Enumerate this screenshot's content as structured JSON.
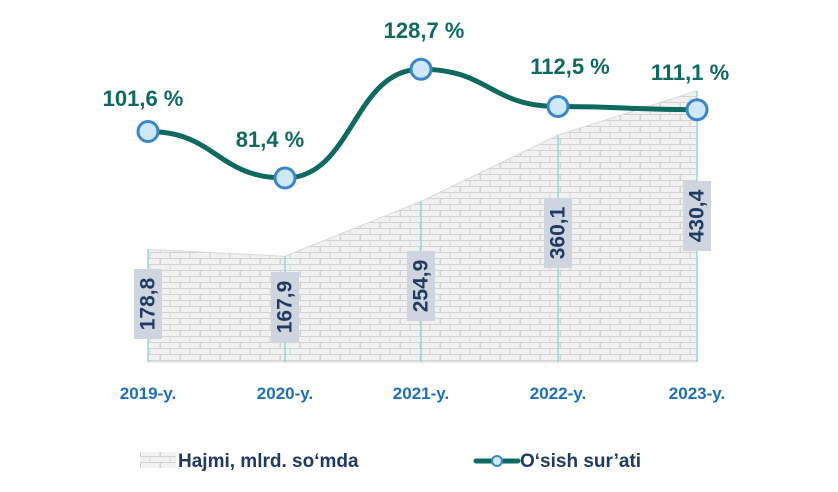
{
  "chart_data": {
    "type": "area+line",
    "categories": [
      "2019-y.",
      "2020-y.",
      "2021-y.",
      "2022-y.",
      "2023-y."
    ],
    "series": [
      {
        "name": "Hajmi, mlrd. so‘mda",
        "type": "area",
        "values": [
          178.8,
          167.9,
          254.9,
          360.1,
          430.4
        ],
        "labels": [
          "178,8",
          "167,9",
          "254,9",
          "360,1",
          "430,4"
        ]
      },
      {
        "name": "O‘sish sur’ati",
        "type": "line",
        "values": [
          101.6,
          81.4,
          128.7,
          112.5,
          111.1
        ],
        "labels": [
          "101,6 %",
          "81,4 %",
          "128,7 %",
          "112,5 %",
          "111,1 %"
        ]
      }
    ],
    "title": "",
    "xlabel": "",
    "ylabel": "",
    "legend_position": "bottom",
    "grid": false
  },
  "colors": {
    "area_fill": "#f1f1f1",
    "brick_line": "#d3d3d3",
    "area_edge": "#d8d8d8",
    "drop_line": "#7fd3d3",
    "growth_line": "#0e6a5e",
    "marker_fill": "#cfe8f6",
    "marker_stroke": "#3a86c8",
    "label_box": "#cfd5de",
    "volume_text": "#1f3b63",
    "growth_text": "#0e6a5e",
    "tick_text": "#1f6fb5"
  }
}
